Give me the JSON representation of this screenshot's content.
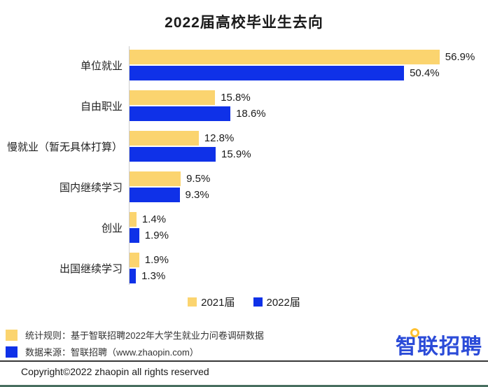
{
  "title": "2022届高校毕业生去向",
  "chart_data": {
    "type": "bar",
    "orientation": "horizontal",
    "title": "2022届高校毕业生去向",
    "categories": [
      "单位就业",
      "自由职业",
      "慢就业（暂无具体打算）",
      "国内继续学习",
      "创业",
      "出国继续学习"
    ],
    "series": [
      {
        "name": "2021届",
        "color": "#fbd46f",
        "values": [
          56.9,
          15.8,
          12.8,
          9.5,
          1.4,
          1.9
        ]
      },
      {
        "name": "2022届",
        "color": "#0f31e8",
        "values": [
          50.4,
          18.6,
          15.9,
          9.3,
          1.9,
          1.3
        ]
      }
    ],
    "value_suffix": "%",
    "xlim": [
      0,
      60
    ],
    "grid": false,
    "legend_position": "bottom"
  },
  "legend": {
    "items": [
      {
        "label": "2021届",
        "color": "#fbd46f"
      },
      {
        "label": "2022届",
        "color": "#0f31e8"
      }
    ]
  },
  "footnotes": [
    {
      "color": "#fbd46f",
      "text": "统计规则：基于智联招聘2022年大学生就业力问卷调研数据"
    },
    {
      "color": "#0f31e8",
      "text": "数据来源：智联招聘（www.zhaopin.com）"
    }
  ],
  "logo": {
    "text": "智联招聘"
  },
  "copyright": "Copyright©2022 zhaopin all rights reserved",
  "colors": {
    "yellow": "#fbd46f",
    "blue": "#0f31e8",
    "axis": "#cccccc"
  }
}
